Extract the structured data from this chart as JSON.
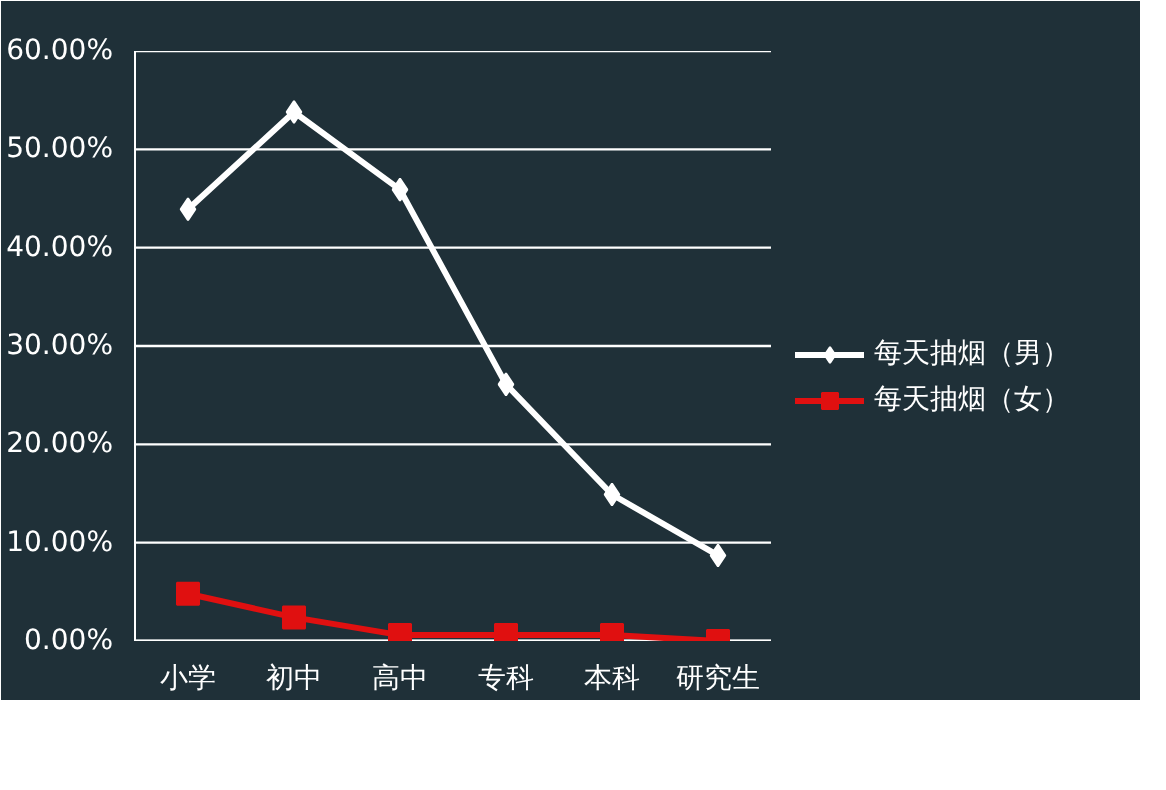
{
  "chart_data": {
    "type": "line",
    "categories": [
      "小学",
      "初中",
      "高中",
      "专科",
      "本科",
      "研究生"
    ],
    "series": [
      {
        "name": "每天抽烟（男）",
        "color": "#ffffff",
        "marker": "diamond",
        "values": [
          43.9,
          53.8,
          45.9,
          26.1,
          14.9,
          8.7
        ]
      },
      {
        "name": "每天抽烟（女）",
        "color": "#e01010",
        "marker": "square",
        "values": [
          4.8,
          2.4,
          0.6,
          0.6,
          0.6,
          0.0
        ]
      }
    ],
    "ylim": [
      0,
      60
    ],
    "yticks": [
      {
        "value": 0,
        "label": "0.00%"
      },
      {
        "value": 10,
        "label": "10.00%"
      },
      {
        "value": 20,
        "label": "20.00%"
      },
      {
        "value": 30,
        "label": "30.00%"
      },
      {
        "value": 40,
        "label": "40.00%"
      },
      {
        "value": 50,
        "label": "50.00%"
      },
      {
        "value": 60,
        "label": "60.00%"
      }
    ],
    "grid": "y",
    "legend": "right",
    "line_style": "solid"
  }
}
